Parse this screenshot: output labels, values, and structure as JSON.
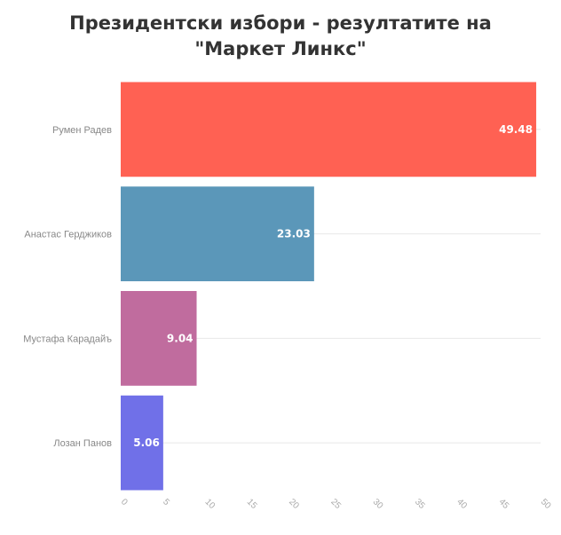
{
  "chart_data": {
    "type": "bar",
    "orientation": "horizontal",
    "title": "Президентски избори - резултатите на \"Маркет Линкс\"",
    "categories": [
      "Румен Радев",
      "Анастас Герджиков",
      "Мустафа Карадайъ",
      "Лозан Панов"
    ],
    "values": [
      49.48,
      23.03,
      9.04,
      5.06
    ],
    "value_labels": [
      "49.48",
      "23.03",
      "9.04",
      "5.06"
    ],
    "colors": [
      "#ff6153",
      "#5b97b9",
      "#c06c9e",
      "#7070e8"
    ],
    "xlim": [
      0,
      50
    ],
    "xticks": [
      0,
      5,
      10,
      15,
      20,
      25,
      30,
      35,
      40,
      45,
      50
    ],
    "xtick_labels": [
      "0",
      "5",
      "10",
      "15",
      "20",
      "25",
      "30",
      "35",
      "40",
      "45",
      "50"
    ],
    "grid": true,
    "legend": "none"
  }
}
